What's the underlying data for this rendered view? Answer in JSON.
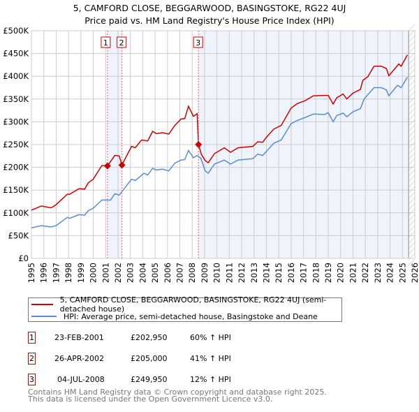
{
  "chart_data": {
    "type": "line",
    "title": "5, CAMFORD CLOSE, BEGGARWOOD, BASINGSTOKE, RG22 4UJ",
    "subtitle": "Price paid vs. HM Land Registry's House Price Index (HPI)",
    "xlim": [
      1995,
      2026
    ],
    "ylim": [
      0,
      500000
    ],
    "x_ticks": [
      "1995",
      "1996",
      "1997",
      "1998",
      "1999",
      "2000",
      "2001",
      "2002",
      "2003",
      "2004",
      "2005",
      "2006",
      "2007",
      "2008",
      "2009",
      "2010",
      "2011",
      "2012",
      "2013",
      "2014",
      "2015",
      "2016",
      "2017",
      "2018",
      "2019",
      "2020",
      "2021",
      "2022",
      "2023",
      "2024",
      "2025",
      "2026"
    ],
    "y_ticks": [
      {
        "v": 0,
        "label": "£0"
      },
      {
        "v": 50000,
        "label": "£50K"
      },
      {
        "v": 100000,
        "label": "£100K"
      },
      {
        "v": 150000,
        "label": "£150K"
      },
      {
        "v": 200000,
        "label": "£200K"
      },
      {
        "v": 250000,
        "label": "£250K"
      },
      {
        "v": 300000,
        "label": "£300K"
      },
      {
        "v": 350000,
        "label": "£350K"
      },
      {
        "v": 400000,
        "label": "£400K"
      },
      {
        "v": 450000,
        "label": "£450K"
      },
      {
        "v": 500000,
        "label": "£500K"
      }
    ],
    "grid": true,
    "shaded_ranges": [
      [
        2001.15,
        2002.32
      ],
      [
        2008.51,
        2026
      ]
    ],
    "forecast_hatch_from": 2025.5,
    "series": [
      {
        "name": "5, CAMFORD CLOSE, BEGGARWOOD, BASINGSTOKE, RG22 4UJ (semi-detached house)",
        "color": "#cc0000",
        "points": [
          [
            1995,
            106
          ],
          [
            1995.8,
            115
          ],
          [
            1996.6,
            111
          ],
          [
            1997,
            118
          ],
          [
            1997.9,
            141
          ],
          [
            1998.1,
            141
          ],
          [
            1998.85,
            153
          ],
          [
            1999.3,
            152
          ],
          [
            1999.6,
            166
          ],
          [
            2000,
            174
          ],
          [
            2000.7,
            204
          ],
          [
            2001.15,
            203
          ],
          [
            2001.75,
            226
          ],
          [
            2002.1,
            225
          ],
          [
            2002.32,
            205
          ],
          [
            2003.1,
            246
          ],
          [
            2003.4,
            243
          ],
          [
            2003.9,
            260
          ],
          [
            2004.4,
            258
          ],
          [
            2004.8,
            279
          ],
          [
            2005.1,
            274
          ],
          [
            2005.6,
            276
          ],
          [
            2006.1,
            273
          ],
          [
            2006.6,
            292
          ],
          [
            2007.1,
            306
          ],
          [
            2007.4,
            307
          ],
          [
            2007.7,
            334
          ],
          [
            2008.1,
            312
          ],
          [
            2008.4,
            318
          ],
          [
            2008.51,
            250
          ],
          [
            2008.75,
            228
          ],
          [
            2009.05,
            215
          ],
          [
            2009.3,
            210
          ],
          [
            2009.8,
            230
          ],
          [
            2010.6,
            243
          ],
          [
            2011.1,
            233
          ],
          [
            2011.7,
            243
          ],
          [
            2012.9,
            246
          ],
          [
            2013.3,
            256
          ],
          [
            2013.7,
            255
          ],
          [
            2014.0,
            266
          ],
          [
            2014.6,
            284
          ],
          [
            2015.2,
            292
          ],
          [
            2016.0,
            330
          ],
          [
            2016.5,
            340
          ],
          [
            2017.1,
            346
          ],
          [
            2017.8,
            357
          ],
          [
            2018.7,
            358
          ],
          [
            2019.0,
            358
          ],
          [
            2019.4,
            339
          ],
          [
            2019.7,
            353
          ],
          [
            2020.2,
            361
          ],
          [
            2020.5,
            350
          ],
          [
            2021.0,
            363
          ],
          [
            2021.6,
            371
          ],
          [
            2021.8,
            391
          ],
          [
            2022.2,
            399
          ],
          [
            2022.7,
            422
          ],
          [
            2023.3,
            422
          ],
          [
            2023.7,
            417
          ],
          [
            2023.9,
            401
          ],
          [
            2024.4,
            417
          ],
          [
            2024.7,
            427
          ],
          [
            2024.9,
            422
          ],
          [
            2025.4,
            447
          ]
        ]
      },
      {
        "name": "HPI: Average price, semi-detached house, Basingstoke and Deane",
        "color": "#5b8bd0",
        "points": [
          [
            1995,
            67
          ],
          [
            1995.8,
            72
          ],
          [
            1996.6,
            69
          ],
          [
            1997,
            72
          ],
          [
            1997.9,
            90
          ],
          [
            1998.1,
            88
          ],
          [
            1998.85,
            96
          ],
          [
            1999.3,
            95
          ],
          [
            1999.6,
            105
          ],
          [
            2000,
            110
          ],
          [
            2000.7,
            128
          ],
          [
            2001.4,
            128
          ],
          [
            2001.75,
            142
          ],
          [
            2002.1,
            139
          ],
          [
            2003.1,
            174
          ],
          [
            2003.4,
            171
          ],
          [
            2004.1,
            187
          ],
          [
            2004.4,
            183
          ],
          [
            2004.8,
            198
          ],
          [
            2005.1,
            194
          ],
          [
            2005.6,
            196
          ],
          [
            2006.1,
            192
          ],
          [
            2006.6,
            209
          ],
          [
            2007.1,
            216
          ],
          [
            2007.4,
            217
          ],
          [
            2007.7,
            237
          ],
          [
            2008.1,
            221
          ],
          [
            2008.4,
            226
          ],
          [
            2008.7,
            220
          ],
          [
            2009.05,
            192
          ],
          [
            2009.3,
            187
          ],
          [
            2009.8,
            207
          ],
          [
            2010.6,
            216
          ],
          [
            2011.1,
            207
          ],
          [
            2011.7,
            216
          ],
          [
            2012.9,
            219
          ],
          [
            2013.3,
            229
          ],
          [
            2013.7,
            226
          ],
          [
            2014.0,
            235
          ],
          [
            2014.6,
            253
          ],
          [
            2015.2,
            260
          ],
          [
            2016.0,
            296
          ],
          [
            2016.5,
            303
          ],
          [
            2017.1,
            309
          ],
          [
            2017.8,
            317
          ],
          [
            2018.7,
            316
          ],
          [
            2019.0,
            320
          ],
          [
            2019.4,
            300
          ],
          [
            2019.7,
            314
          ],
          [
            2020.2,
            319
          ],
          [
            2020.5,
            311
          ],
          [
            2021.0,
            322
          ],
          [
            2021.6,
            329
          ],
          [
            2021.9,
            350
          ],
          [
            2022.7,
            375
          ],
          [
            2023.3,
            375
          ],
          [
            2023.7,
            370
          ],
          [
            2023.9,
            357
          ],
          [
            2024.6,
            380
          ],
          [
            2024.9,
            375
          ],
          [
            2025.4,
            398
          ]
        ]
      }
    ],
    "sales": [
      {
        "n": "1",
        "x": 2001.15,
        "value": 202950,
        "date": "23-FEB-2001",
        "price": "£202,950",
        "hpi": "60% ↑ HPI"
      },
      {
        "n": "2",
        "x": 2002.32,
        "value": 205000,
        "date": "26-APR-2002",
        "price": "£205,000",
        "hpi": "41% ↑ HPI"
      },
      {
        "n": "3",
        "x": 2008.51,
        "value": 249950,
        "date": "04-JUL-2008",
        "price": "£249,950",
        "hpi": "12% ↑ HPI"
      }
    ]
  },
  "legend": {
    "red": "5, CAMFORD CLOSE, BEGGARWOOD, BASINGSTOKE, RG22 4UJ (semi-detached house)",
    "blue": "HPI: Average price, semi-detached house, Basingstoke and Deane"
  },
  "footer": {
    "line1": "Contains HM Land Registry data © Crown copyright and database right 2025.",
    "line2": "This data is licensed under the Open Government Licence v3.0."
  }
}
